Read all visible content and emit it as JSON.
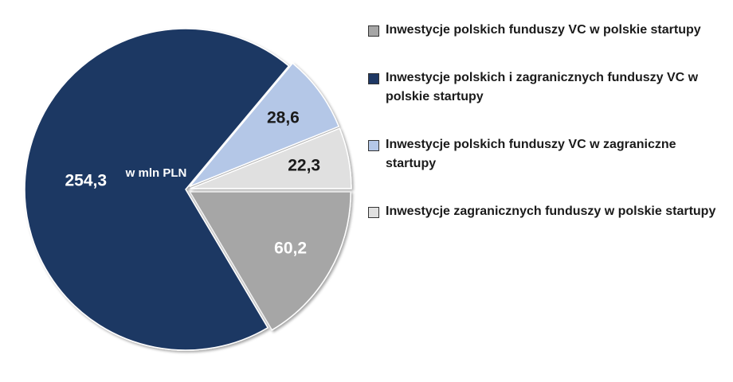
{
  "chart_data": {
    "type": "pie",
    "center_label": "w mln PLN",
    "slices": [
      {
        "name": "Inwestycje polskich funduszy VC w polskie startupy",
        "value": 60.2,
        "label": "60,2",
        "color": "#a6a6a6",
        "label_color": "#ffffff",
        "exploded": true
      },
      {
        "name": "Inwestycje polskich i zagranicznych funduszy VC w polskie startupy",
        "value": 254.3,
        "label": "254,3",
        "color": "#1f3864",
        "label_color": "#ffffff",
        "exploded": false
      },
      {
        "name": "Inwestycje polskich funduszy VC w zagraniczne startupy",
        "value": 28.6,
        "label": "28,6",
        "color": "#b4c7e7",
        "label_color": "#1a1a1a",
        "exploded": true
      },
      {
        "name": "Inwestycje zagranicznych funduszy w polskie startupy",
        "value": 22.3,
        "label": "22,3",
        "color": "#e0e0e0",
        "label_color": "#1a1a1a",
        "exploded": true
      }
    ],
    "legend": [
      "Inwestycje polskich funduszy VC w polskie startupy",
      "Inwestycje polskich i zagranicznych funduszy VC w polskie startupy",
      "Inwestycje polskich funduszy VC w zagraniczne startupy",
      "Inwestycje zagranicznych funduszy w polskie startupy"
    ],
    "legend_colors": [
      "#a6a6a6",
      "#1f3864",
      "#b4c7e7",
      "#e0e0e0"
    ],
    "legend_position": "right"
  }
}
